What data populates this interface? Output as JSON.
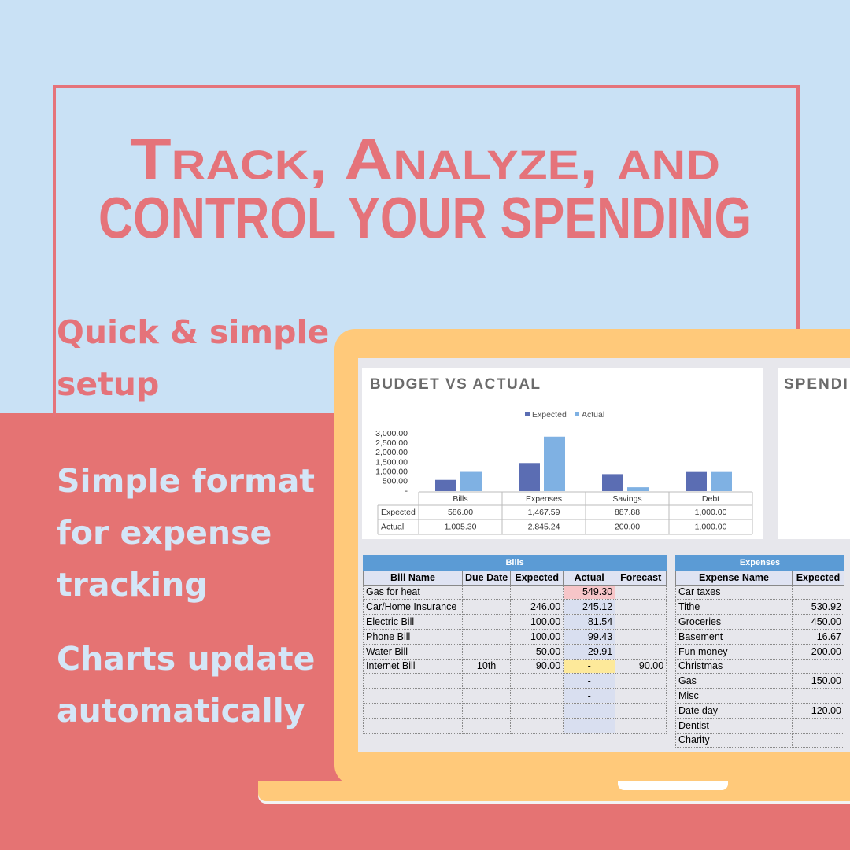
{
  "header": {
    "title_lines": [
      "Track, Analyze, and",
      "control your spending"
    ]
  },
  "features": [
    "Quick & simple setup",
    "Simple format for expense tracking",
    "Charts update automatically"
  ],
  "chart_data": {
    "type": "bar",
    "title": "BUDGET VS ACTUAL",
    "categories": [
      "Bills",
      "Expenses",
      "Savings",
      "Debt"
    ],
    "series": [
      {
        "name": "Expected",
        "color": "#5b6db3",
        "values": [
          586,
          1467.59,
          887.88,
          1000
        ],
        "value_labels": [
          "586.00",
          "1,467.59",
          "887.88",
          "1,000.00"
        ]
      },
      {
        "name": "Actual",
        "color": "#7fb1e3",
        "values": [
          1005.3,
          2845.24,
          200,
          1000
        ],
        "value_labels": [
          "1,005.30",
          "2,845.24",
          "200.00",
          "1,000.00"
        ]
      }
    ],
    "ylim": [
      0,
      3000
    ],
    "yticks": [
      {
        "value": 0,
        "label": "-"
      },
      {
        "value": 500,
        "label": "500.00"
      },
      {
        "value": 1000,
        "label": "1,000.00"
      },
      {
        "value": 1500,
        "label": "1,500.00"
      },
      {
        "value": 2000,
        "label": "2,000.00"
      },
      {
        "value": 2500,
        "label": "2,500.00"
      },
      {
        "value": 3000,
        "label": "3,000.00"
      }
    ],
    "grid": false,
    "legend": "top"
  },
  "spending_panel": {
    "title": "SPENDI"
  },
  "bills_table": {
    "title": "Bills",
    "headers": [
      "Bill Name",
      "Due Date",
      "Expected",
      "Actual",
      "Forecast"
    ],
    "rows": [
      [
        "Gas for heat",
        null,
        null,
        "549.30",
        null
      ],
      [
        "Car/Home Insurance",
        null,
        "246.00",
        "245.12",
        null
      ],
      [
        "Electric Bill",
        null,
        "100.00",
        "81.54",
        null
      ],
      [
        "Phone Bill",
        null,
        "100.00",
        "99.43",
        null
      ],
      [
        "Water Bill",
        null,
        "50.00",
        "29.91",
        null
      ],
      [
        "Internet Bill",
        "10th",
        "90.00",
        "-",
        "90.00"
      ],
      [
        null,
        null,
        null,
        "-",
        null
      ],
      [
        null,
        null,
        null,
        "-",
        null
      ],
      [
        null,
        null,
        null,
        "-",
        null
      ],
      [
        null,
        null,
        null,
        "-",
        null
      ]
    ]
  },
  "expenses_table": {
    "title": "Expenses",
    "headers": [
      "Expense Name",
      "Expected"
    ],
    "rows": [
      [
        "Car taxes",
        null
      ],
      [
        "Tithe",
        "530.92"
      ],
      [
        "Groceries",
        "450.00"
      ],
      [
        "Basement",
        "16.67"
      ],
      [
        "Fun money",
        "200.00"
      ],
      [
        "Christmas",
        null
      ],
      [
        "Gas",
        "150.00"
      ],
      [
        "Misc",
        null
      ],
      [
        "Date day",
        "120.00"
      ],
      [
        "Dentist",
        null
      ],
      [
        "Charity",
        null
      ]
    ]
  }
}
